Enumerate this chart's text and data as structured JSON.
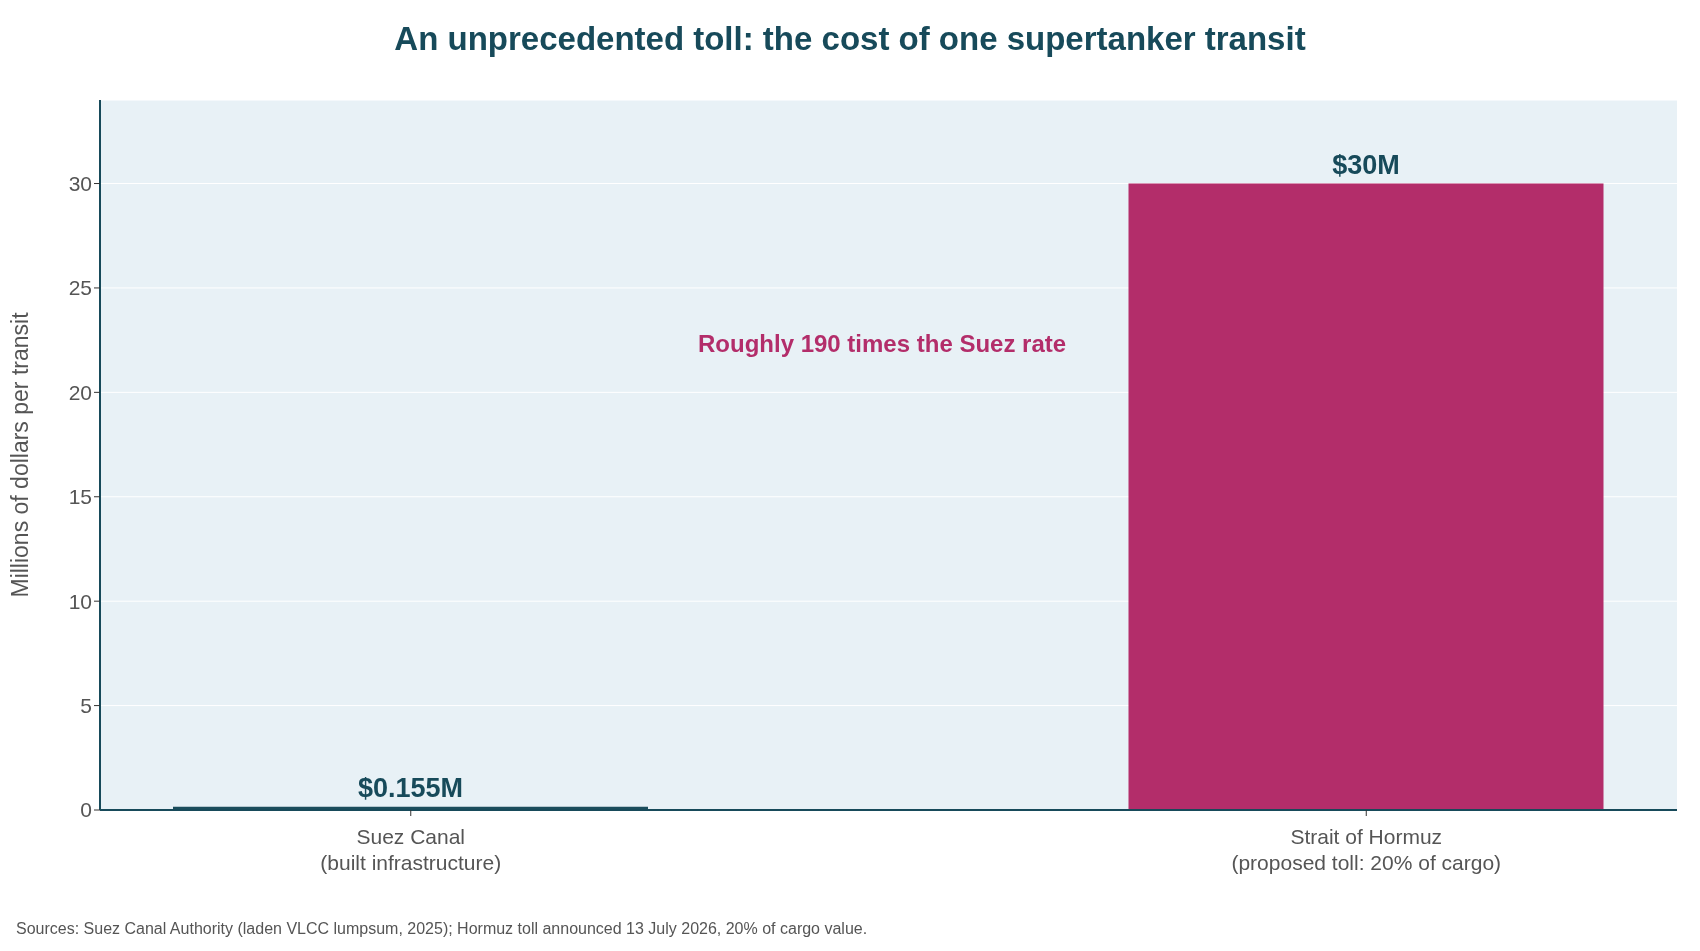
{
  "chart_data": {
    "type": "bar",
    "title": "An unprecedented toll: the cost of one supertanker transit",
    "ylabel": "Millions of dollars per transit",
    "categories": [
      "Suez Canal\n(built infrastructure)",
      "Strait of Hormuz\n(proposed toll: 20% of cargo)"
    ],
    "values": [
      0.155,
      30
    ],
    "colors": [
      "#1b4d5c",
      "#b32d6a"
    ],
    "value_labels": [
      "$0.155M",
      "$30M"
    ],
    "ylim": [
      0,
      34
    ],
    "yticks": [
      0,
      5,
      10,
      15,
      20,
      25,
      30
    ],
    "grid": "y",
    "annotations": [
      "Roughly 190 times the Suez rate",
      "Sources: Suez Canal Authority (laden VLCC lumpsum, 2025); Hormuz toll announced 13 July 2026, 20% of cargo value."
    ]
  }
}
